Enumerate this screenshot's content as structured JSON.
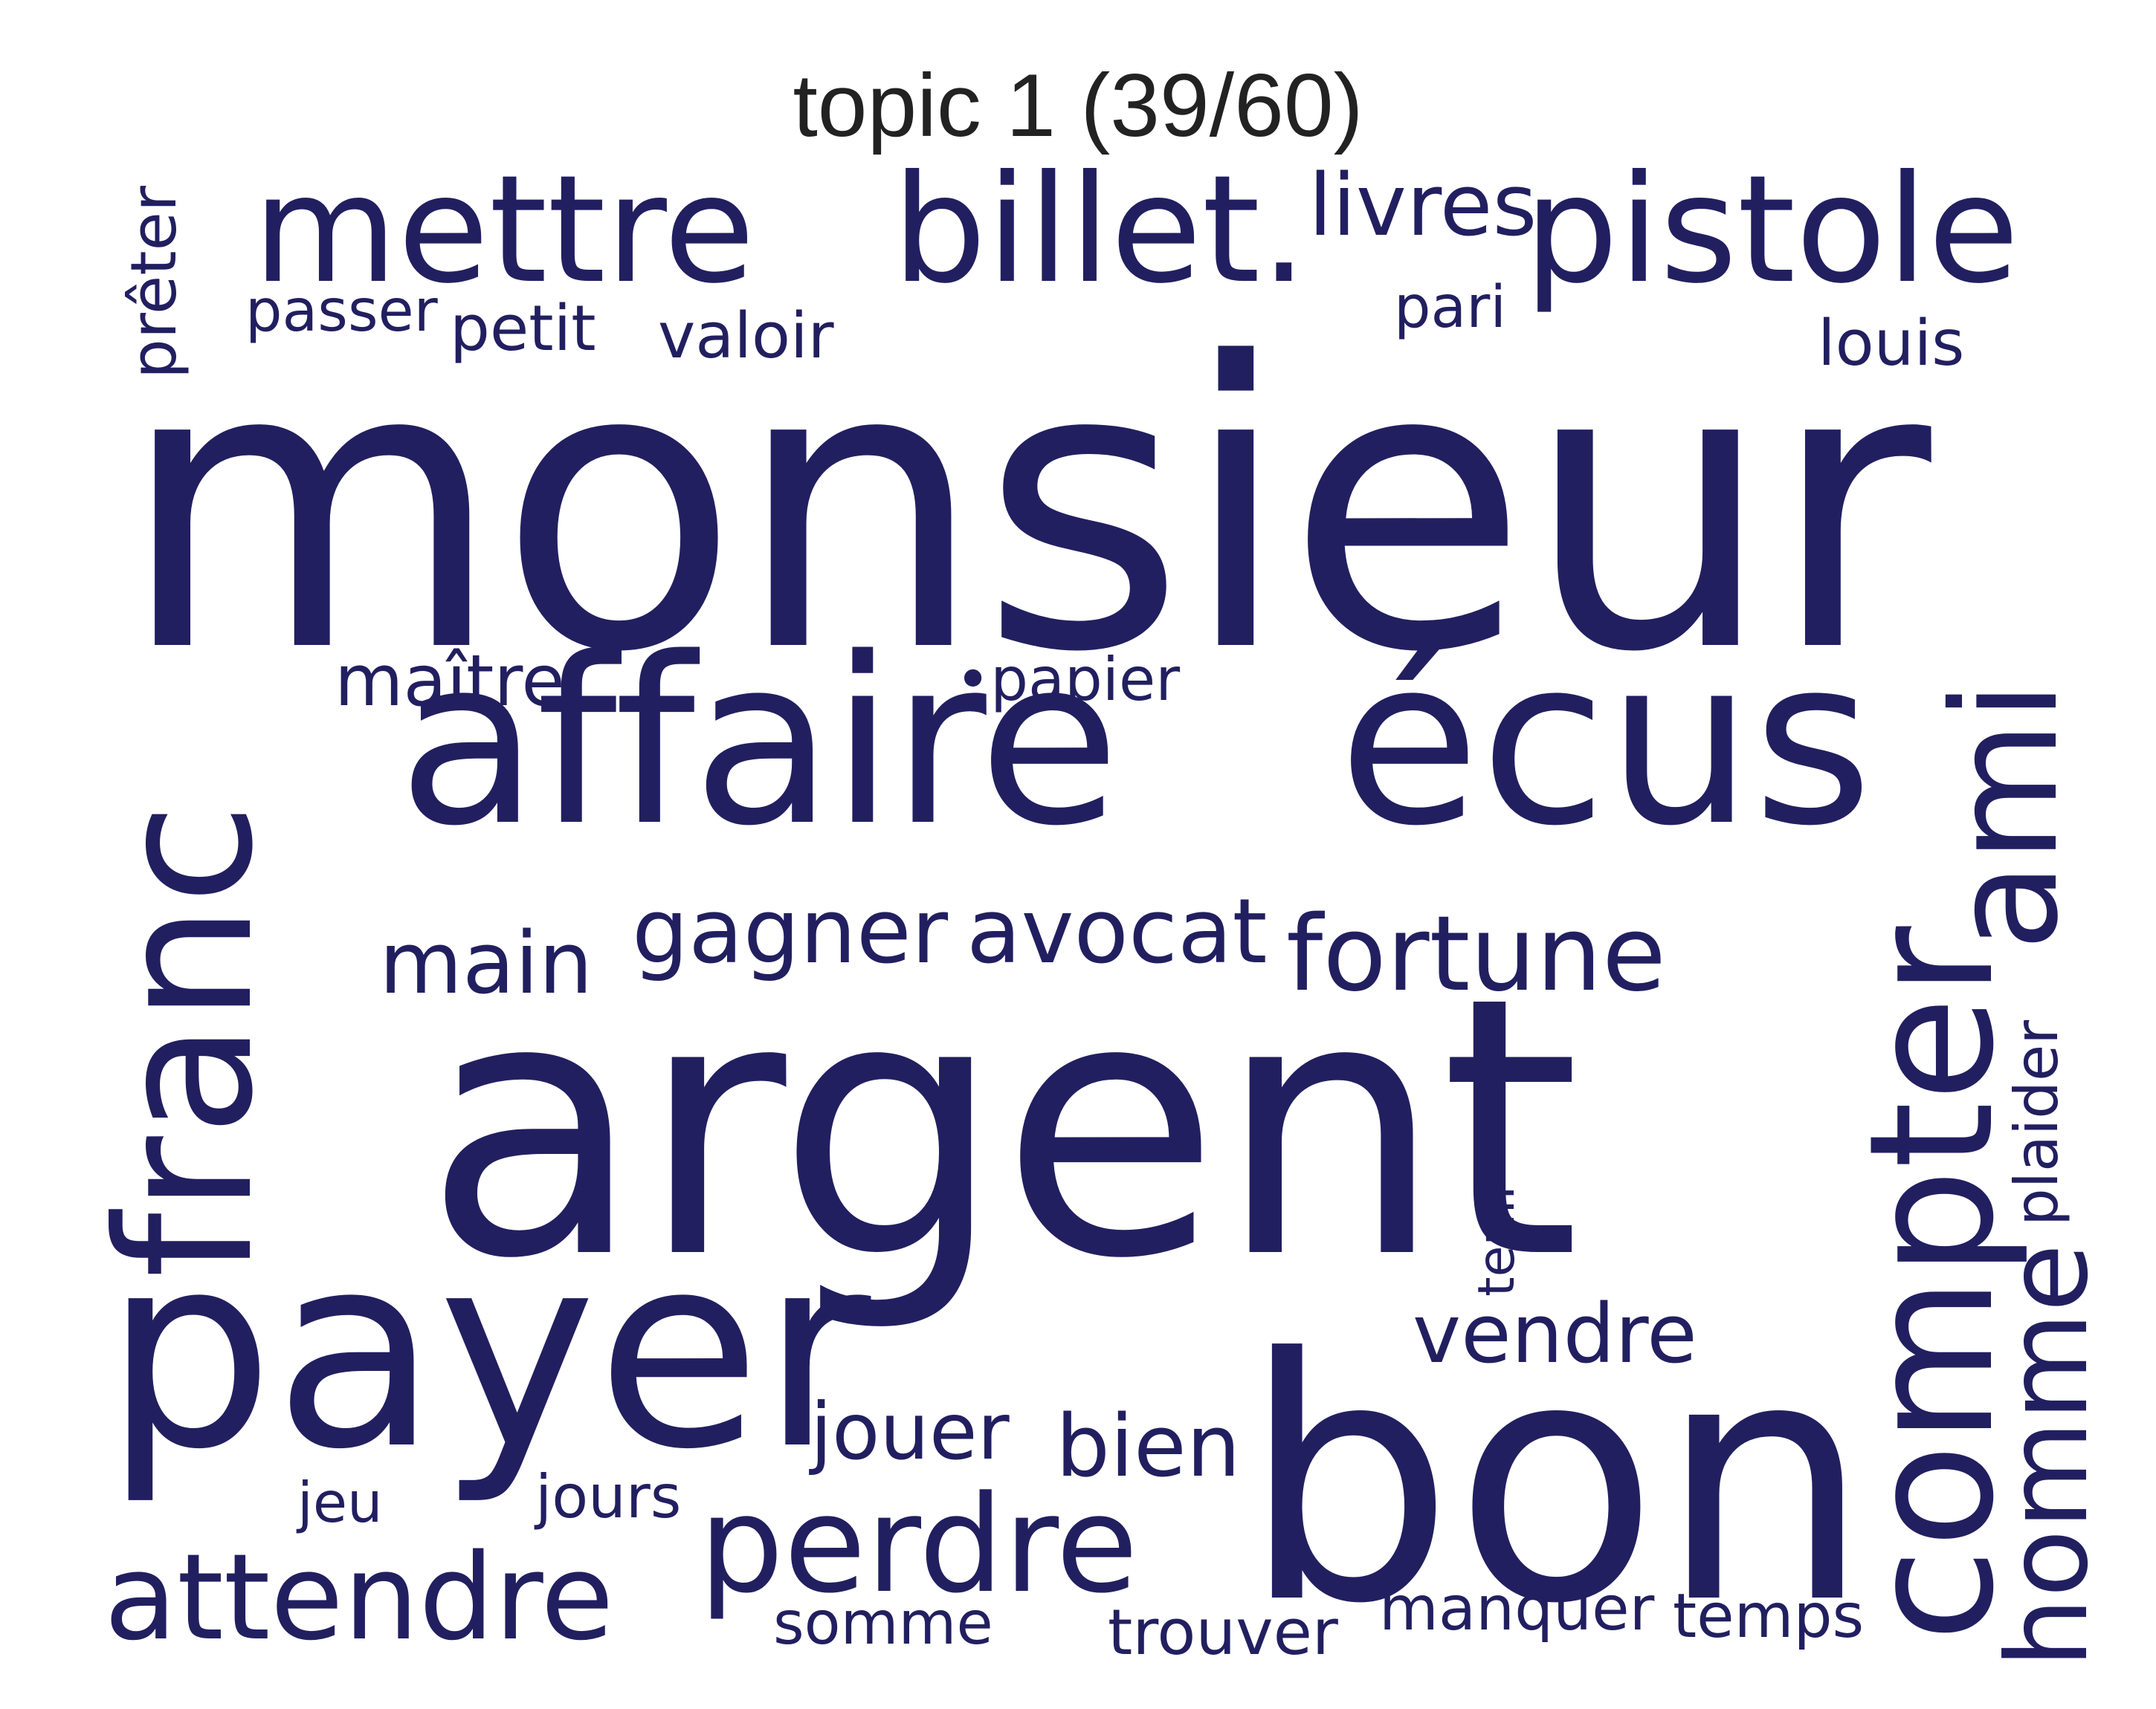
{
  "title": "topic 1 (39/60)",
  "text_color": "#221f60",
  "words": {
    "monsieur": "monsieur",
    "argent": "argent",
    "bon": "bon",
    "payer": "payer",
    "franc": "franc",
    "affaire": "affaire",
    "ecus": "écus",
    "mettre": "mettre",
    "billet": "billet.",
    "pistole": "pistole",
    "compter": "compter",
    "ami": "ami",
    "attendre": "attendre",
    "perdre": "perdre",
    "homme": "homme",
    "fortune": "fortune",
    "livres": "livres",
    "gagner": "gagner",
    "avocat": "avocat",
    "main": "main",
    "maitre": "maître",
    "papier": "•papier",
    "pret": "prêter",
    "passer": "passer",
    "petit": "petit",
    "valoir": "valoir",
    "pari": "pari",
    "louis": "louis",
    "plaider": "plaider",
    "tenir": "tenir",
    "vendre": "vendre",
    "jouer": "jouer",
    "bien": "bien",
    "jeu": "jeu",
    "jours": "jours",
    "somme": "somme",
    "trouver": "trouver",
    "manquer": "manquer",
    "temps": "temps"
  }
}
